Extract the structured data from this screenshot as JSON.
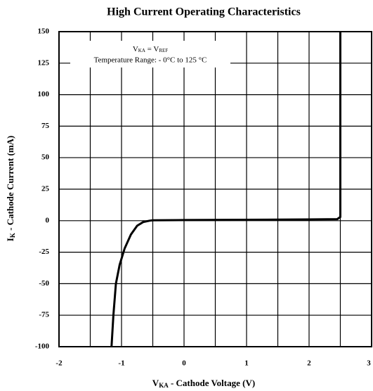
{
  "chart_data": {
    "type": "line",
    "title": "High Current Operating Characteristics",
    "x_label": [
      "V",
      "KA",
      " - Cathode Voltage (V)"
    ],
    "y_label": [
      "I",
      "K",
      " - Cathode Current (mA)"
    ],
    "annotation": {
      "line1": [
        "V",
        "KA",
        " = V",
        "REF"
      ],
      "line2": "Temperature Range: - 0°C to 125 °C"
    },
    "xlim": [
      -2,
      3
    ],
    "ylim": [
      -100,
      150
    ],
    "xticks": [
      -2,
      -1,
      0,
      1,
      2,
      3
    ],
    "yticks": [
      -100,
      -75,
      -50,
      -25,
      0,
      25,
      50,
      75,
      100,
      125,
      150
    ],
    "xgrid": [
      -2,
      -1.5,
      -1,
      -0.5,
      0,
      0.5,
      1,
      1.5,
      2,
      2.5,
      3
    ],
    "grid": true,
    "series": [
      {
        "color": "#000000",
        "x": [
          -1.16,
          -1.13,
          -1.09,
          -1.03,
          -0.95,
          -0.85,
          -0.75,
          -0.65,
          -0.55,
          -0.5,
          0,
          1,
          2,
          2.45,
          2.5,
          2.5
        ],
        "values": [
          -100,
          -75,
          -50,
          -35,
          -22,
          -11,
          -4,
          -1,
          0,
          0.3,
          0.5,
          0.7,
          1,
          1.2,
          3,
          150
        ]
      }
    ]
  }
}
